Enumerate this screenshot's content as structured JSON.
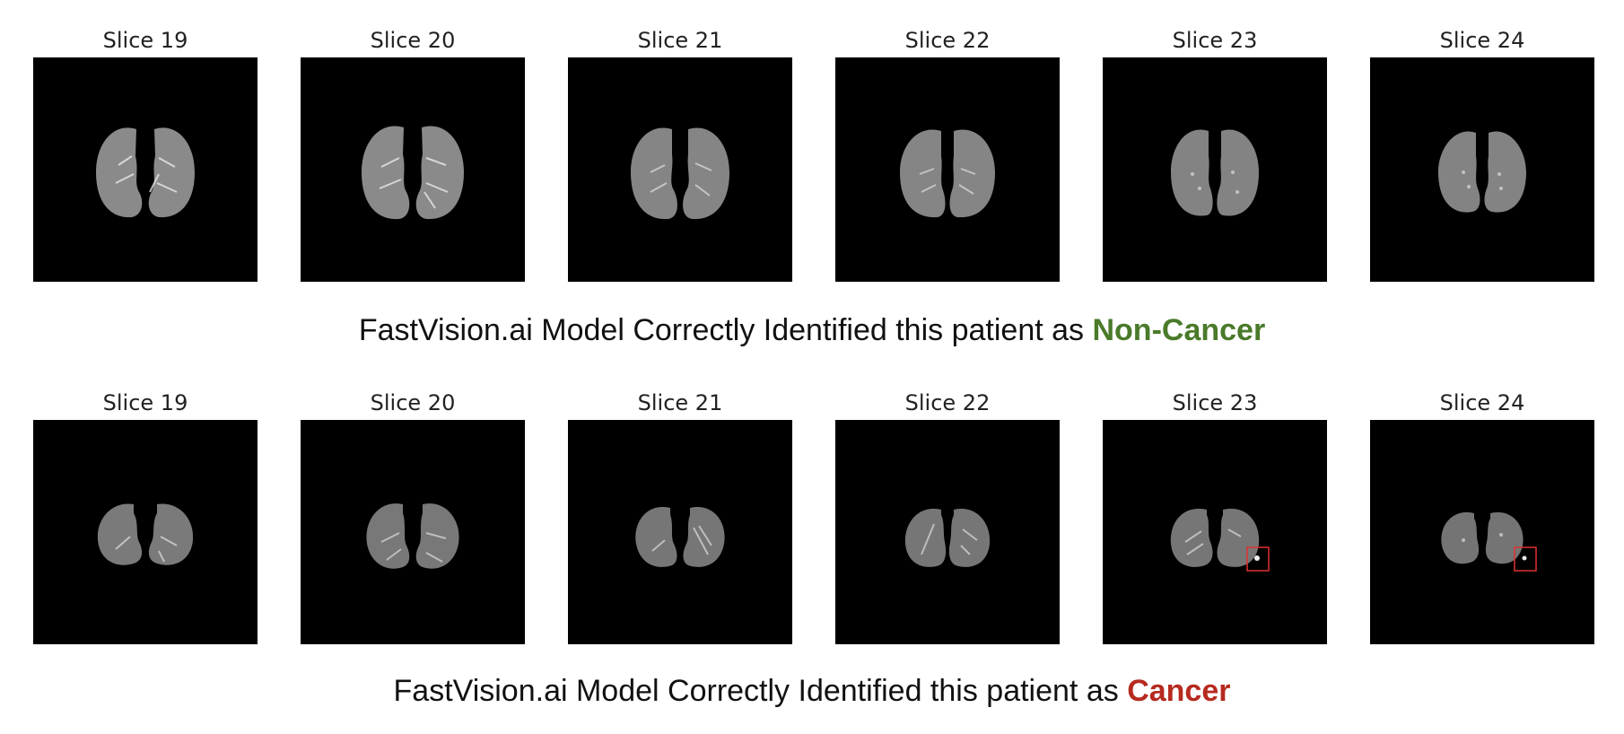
{
  "rows": [
    {
      "slices": [
        {
          "title": "Slice 19"
        },
        {
          "title": "Slice 20"
        },
        {
          "title": "Slice 21"
        },
        {
          "title": "Slice 22"
        },
        {
          "title": "Slice 23"
        },
        {
          "title": "Slice 24"
        }
      ],
      "caption_prefix": "FastVision.ai Model Correctly Identified this patient as",
      "verdict": "Non-Cancer",
      "verdict_color": "#4a7a2a"
    },
    {
      "slices": [
        {
          "title": "Slice 19"
        },
        {
          "title": "Slice 20"
        },
        {
          "title": "Slice 21"
        },
        {
          "title": "Slice 22"
        },
        {
          "title": "Slice 23",
          "highlight": true
        },
        {
          "title": "Slice 24",
          "highlight": true
        }
      ],
      "caption_prefix": "FastVision.ai Model Correctly Identified this patient as",
      "verdict": "Cancer",
      "verdict_color": "#b62a1f"
    }
  ],
  "highlight_color": "#e03030"
}
